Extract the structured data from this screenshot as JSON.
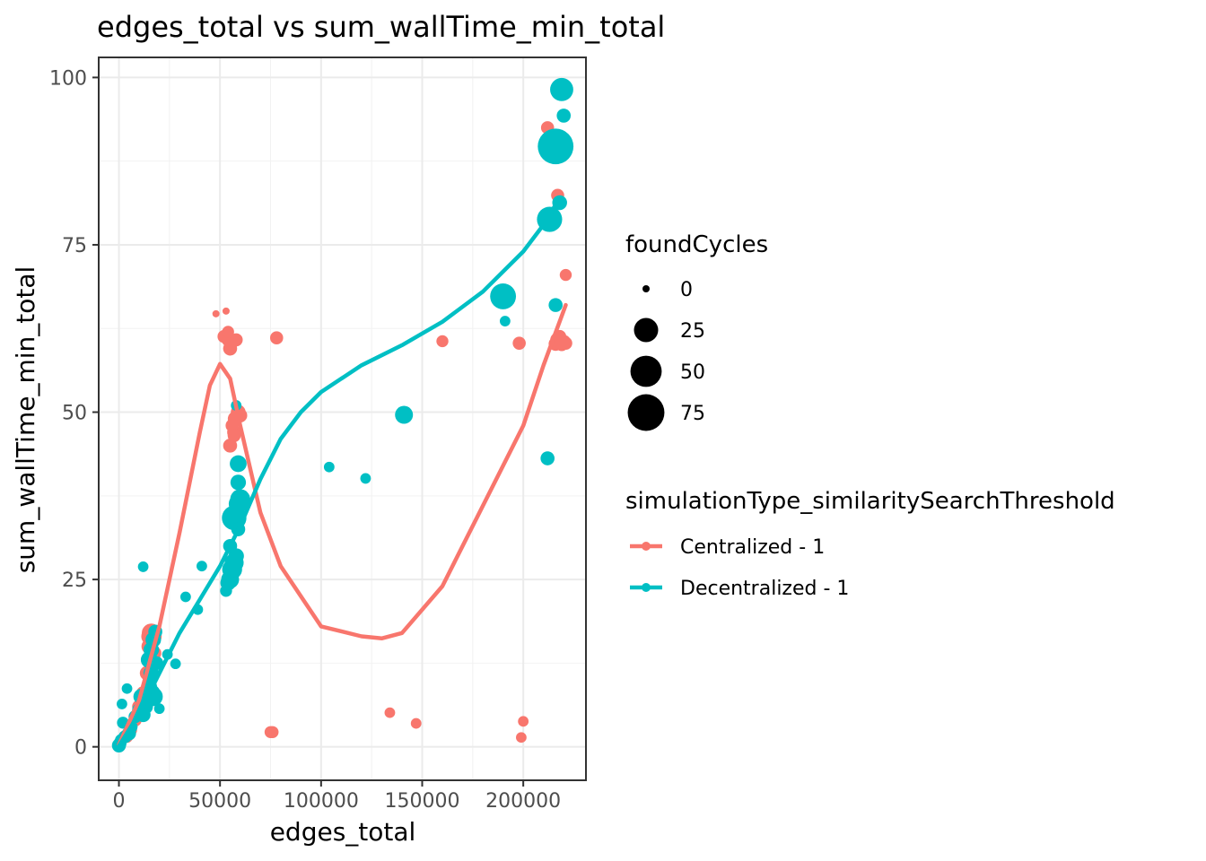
{
  "chart_data": {
    "type": "scatter",
    "title": "edges_total  vs  sum_wallTime_min_total",
    "xlabel": "edges_total",
    "ylabel": "sum_wallTime_min_total",
    "xlim": [
      -10000,
      231000
    ],
    "ylim": [
      -5,
      103
    ],
    "x_ticks": [
      0,
      50000,
      100000,
      150000,
      200000
    ],
    "x_tick_labels": [
      "0",
      "50000",
      "100000",
      "150000",
      "200000"
    ],
    "y_ticks": [
      0,
      25,
      50,
      75,
      100
    ],
    "y_tick_labels": [
      "0",
      "25",
      "50",
      "75",
      "100"
    ],
    "grid": true,
    "legend_position": "right",
    "size_legend": {
      "title": "foundCycles",
      "entries": [
        {
          "label": "0",
          "value": 0
        },
        {
          "label": "25",
          "value": 25
        },
        {
          "label": "50",
          "value": 50
        },
        {
          "label": "75",
          "value": 75
        }
      ]
    },
    "color_legend": {
      "title": "simulationType_similaritySearchThreshold"
    },
    "series": [
      {
        "name": "Centralized - 1",
        "color": "#F8766D",
        "points": [
          [
            0,
            0.3,
            0
          ],
          [
            1000,
            0.5,
            0
          ],
          [
            2000,
            0.8,
            0
          ],
          [
            4000,
            1.5,
            2
          ],
          [
            6000,
            2.5,
            2
          ],
          [
            8000,
            4,
            3
          ],
          [
            10000,
            6,
            4
          ],
          [
            12000,
            8,
            4
          ],
          [
            14000,
            11,
            5
          ],
          [
            14500,
            13,
            5
          ],
          [
            15000,
            15,
            6
          ],
          [
            15500,
            16.5,
            10
          ],
          [
            16000,
            17,
            12
          ],
          [
            17000,
            16.5,
            8
          ],
          [
            17500,
            14,
            4
          ],
          [
            48000,
            64.7,
            0
          ],
          [
            53000,
            65.1,
            0
          ],
          [
            52000,
            61.3,
            3
          ],
          [
            54000,
            62,
            2
          ],
          [
            56000,
            60.5,
            3
          ],
          [
            55000,
            59.5,
            4
          ],
          [
            54000,
            60.8,
            3
          ],
          [
            58000,
            60.8,
            3
          ],
          [
            57000,
            47,
            4
          ],
          [
            55000,
            45,
            4
          ],
          [
            56000,
            48,
            3
          ],
          [
            57500,
            49,
            5
          ],
          [
            59000,
            50,
            5
          ],
          [
            60000,
            49.5,
            4
          ],
          [
            57000,
            46.5,
            3
          ],
          [
            78000,
            61.1,
            3
          ],
          [
            76000,
            2.2,
            2
          ],
          [
            75000,
            2.2,
            2
          ],
          [
            134000,
            5.1,
            1
          ],
          [
            147000,
            3.5,
            1
          ],
          [
            160000,
            60.6,
            2
          ],
          [
            198000,
            60.3,
            3
          ],
          [
            200000,
            3.8,
            1
          ],
          [
            199000,
            1.4,
            1
          ],
          [
            212000,
            92.5,
            3
          ],
          [
            216000,
            60.2,
            4
          ],
          [
            217000,
            60.8,
            5
          ],
          [
            218000,
            61.3,
            3
          ],
          [
            219000,
            60.1,
            3
          ],
          [
            220000,
            60.5,
            4
          ],
          [
            221000,
            60.3,
            3
          ],
          [
            217000,
            82.4,
            3
          ],
          [
            221000,
            70.5,
            2
          ]
        ],
        "trend": [
          [
            0,
            0.3
          ],
          [
            10000,
            7
          ],
          [
            20000,
            18
          ],
          [
            30000,
            32
          ],
          [
            40000,
            47
          ],
          [
            45000,
            54
          ],
          [
            50000,
            57.2
          ],
          [
            55000,
            55
          ],
          [
            60000,
            48
          ],
          [
            70000,
            35
          ],
          [
            80000,
            27
          ],
          [
            100000,
            18
          ],
          [
            120000,
            16.5
          ],
          [
            130000,
            16.2
          ],
          [
            140000,
            17
          ],
          [
            160000,
            24
          ],
          [
            180000,
            36
          ],
          [
            200000,
            48
          ],
          [
            210000,
            57
          ],
          [
            221000,
            66
          ]
        ]
      },
      {
        "name": "Decentralized - 1",
        "color": "#00BFC4",
        "points": [
          [
            0,
            0.2,
            4
          ],
          [
            500,
            0.5,
            3
          ],
          [
            1000,
            1,
            2
          ],
          [
            2000,
            3.6,
            2
          ],
          [
            1500,
            6.4,
            1
          ],
          [
            4000,
            8.7,
            1
          ],
          [
            3000,
            1.5,
            3
          ],
          [
            5000,
            2,
            4
          ],
          [
            6000,
            3,
            3
          ],
          [
            8000,
            4.5,
            3
          ],
          [
            10000,
            5.5,
            4
          ],
          [
            12000,
            4.8,
            5
          ],
          [
            11000,
            7.5,
            6
          ],
          [
            13000,
            6,
            6
          ],
          [
            14000,
            7,
            8
          ],
          [
            16000,
            8,
            10
          ],
          [
            17000,
            7.5,
            12
          ],
          [
            15000,
            9,
            6
          ],
          [
            16000,
            11,
            6
          ],
          [
            15000,
            13,
            8
          ],
          [
            16000,
            14.5,
            6
          ],
          [
            17000,
            16,
            6
          ],
          [
            18000,
            17.2,
            4
          ],
          [
            18500,
            12.5,
            4
          ],
          [
            20000,
            5.7,
            1
          ],
          [
            12000,
            26.9,
            1
          ],
          [
            24000,
            13.8,
            1
          ],
          [
            28000,
            12.4,
            1
          ],
          [
            33000,
            22.4,
            1
          ],
          [
            39000,
            20.5,
            1
          ],
          [
            41000,
            27,
            1
          ],
          [
            53000,
            23.3,
            2
          ],
          [
            54000,
            24.5,
            6
          ],
          [
            55000,
            25,
            10
          ],
          [
            56000,
            26.5,
            14
          ],
          [
            57000,
            27.5,
            12
          ],
          [
            58000,
            28.5,
            6
          ],
          [
            55000,
            30,
            4
          ],
          [
            59000,
            32.5,
            4
          ],
          [
            57000,
            34.2,
            26
          ],
          [
            59000,
            36.3,
            12
          ],
          [
            60000,
            37,
            14
          ],
          [
            59000,
            39.5,
            6
          ],
          [
            59000,
            42.3,
            8
          ],
          [
            58000,
            51,
            1
          ],
          [
            104000,
            41.8,
            1
          ],
          [
            122000,
            40.1,
            1
          ],
          [
            141000,
            49.6,
            10
          ],
          [
            190000,
            67.3,
            30
          ],
          [
            191000,
            63.6,
            1
          ],
          [
            212000,
            43.1,
            4
          ],
          [
            213000,
            78.8,
            28
          ],
          [
            216000,
            89.7,
            70
          ],
          [
            216000,
            66,
            4
          ],
          [
            218000,
            81.3,
            5
          ],
          [
            219000,
            98.2,
            22
          ],
          [
            220000,
            94.3,
            4
          ]
        ],
        "trend": [
          [
            0,
            0.1
          ],
          [
            10000,
            5
          ],
          [
            20000,
            11
          ],
          [
            30000,
            17
          ],
          [
            40000,
            22
          ],
          [
            50000,
            27
          ],
          [
            60000,
            33
          ],
          [
            70000,
            40
          ],
          [
            80000,
            46
          ],
          [
            90000,
            50
          ],
          [
            100000,
            53
          ],
          [
            120000,
            57
          ],
          [
            140000,
            60
          ],
          [
            160000,
            63.5
          ],
          [
            180000,
            68
          ],
          [
            200000,
            74
          ],
          [
            210000,
            78
          ],
          [
            215000,
            80.5
          ],
          [
            218000,
            82
          ]
        ]
      }
    ]
  }
}
